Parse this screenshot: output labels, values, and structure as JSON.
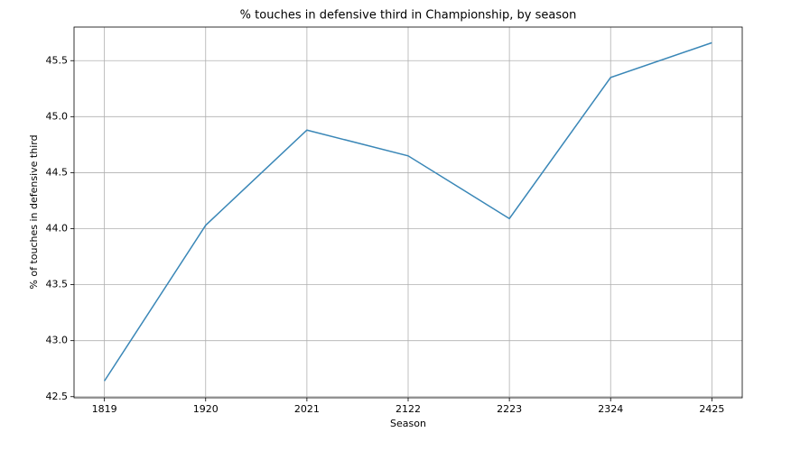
{
  "chart_data": {
    "type": "line",
    "title": "% touches in defensive third in Championship, by season",
    "x_label": "Season",
    "y_label": "% of touches in defensive third",
    "categories": [
      "1819",
      "1920",
      "2021",
      "2122",
      "2223",
      "2324",
      "2425"
    ],
    "values": [
      42.64,
      44.03,
      44.88,
      44.65,
      44.09,
      45.35,
      45.66
    ],
    "color": "#3a87b7",
    "ylim": [
      42.49,
      45.8
    ],
    "yticks": [
      42.5,
      {
        "value": 43,
        "label": "43.0"
      },
      43.5,
      {
        "value": 44,
        "label": "44.0"
      },
      44.5,
      {
        "value": 45,
        "label": "45.0"
      },
      45.5
    ],
    "grid": true
  }
}
